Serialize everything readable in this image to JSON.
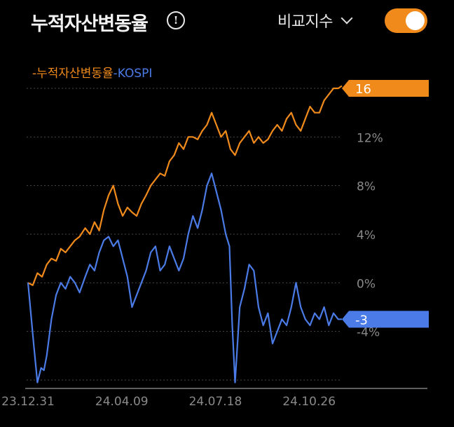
{
  "header": {
    "title": "누적자산변동율",
    "info_icon": "info-circle-icon",
    "info_glyph": "!",
    "compare_label": "비교지수",
    "compare_icon": "chevron-down-icon",
    "toggle_on": true
  },
  "colors": {
    "background": "#000000",
    "portfolio": "#f08a1a",
    "kospi": "#4a7be6",
    "toggle": "#f08a1a",
    "grid": "#4a4a4a",
    "tick_label": "#8a8a8a"
  },
  "chart_data": {
    "type": "line",
    "title": "",
    "xlabel": "",
    "ylabel": "",
    "legend": {
      "placement": "top-left",
      "entries": [
        "누적자산변동율",
        "KOSPI"
      ]
    },
    "ylim": [
      -8.3,
      16.3
    ],
    "y_ticks": [
      {
        "value": 12,
        "label": "12%"
      },
      {
        "value": 8,
        "label": "8%"
      },
      {
        "value": 4,
        "label": "4%"
      },
      {
        "value": 0,
        "label": "0%"
      },
      {
        "value": -4,
        "label": "-4%"
      }
    ],
    "gridlines": [
      16,
      12,
      8,
      4,
      0,
      -4,
      -8
    ],
    "x_ticks": [
      "23.12.31",
      "24.04.09",
      "24.07.18",
      "24.10.26"
    ],
    "x_tick_dates": [
      "2023-12-31",
      "2024-04-09",
      "2024-07-18",
      "2024-10-26"
    ],
    "x_range": [
      "2023-12-31",
      "2024-11-30"
    ],
    "end_labels": [
      {
        "series": "누적자산변동율",
        "label": "16",
        "value": 16
      },
      {
        "series": "KOSPI",
        "label": "-3",
        "value": -3
      }
    ],
    "series": [
      {
        "name": "누적자산변동율",
        "color": "#f08a1a",
        "x": [
          "2023-12-31",
          "2024-01-05",
          "2024-01-10",
          "2024-01-15",
          "2024-01-20",
          "2024-01-25",
          "2024-01-30",
          "2024-02-04",
          "2024-02-09",
          "2024-02-14",
          "2024-02-19",
          "2024-02-24",
          "2024-03-01",
          "2024-03-06",
          "2024-03-11",
          "2024-03-16",
          "2024-03-21",
          "2024-03-26",
          "2024-03-31",
          "2024-04-05",
          "2024-04-10",
          "2024-04-15",
          "2024-04-20",
          "2024-04-25",
          "2024-04-30",
          "2024-05-05",
          "2024-05-10",
          "2024-05-15",
          "2024-05-20",
          "2024-05-25",
          "2024-05-30",
          "2024-06-04",
          "2024-06-09",
          "2024-06-14",
          "2024-06-19",
          "2024-06-24",
          "2024-06-29",
          "2024-07-04",
          "2024-07-09",
          "2024-07-14",
          "2024-07-19",
          "2024-07-24",
          "2024-07-29",
          "2024-08-03",
          "2024-08-08",
          "2024-08-13",
          "2024-08-18",
          "2024-08-23",
          "2024-08-28",
          "2024-09-02",
          "2024-09-07",
          "2024-09-12",
          "2024-09-17",
          "2024-09-22",
          "2024-09-27",
          "2024-10-02",
          "2024-10-07",
          "2024-10-12",
          "2024-10-17",
          "2024-10-22",
          "2024-10-27",
          "2024-11-01",
          "2024-11-06",
          "2024-11-11",
          "2024-11-16",
          "2024-11-21",
          "2024-11-26",
          "2024-11-30"
        ],
        "values": [
          0.0,
          -0.2,
          0.8,
          0.5,
          1.5,
          2.0,
          1.8,
          2.8,
          2.5,
          3.0,
          3.5,
          3.8,
          4.5,
          4.0,
          5.0,
          4.3,
          6.0,
          7.2,
          8.0,
          6.5,
          5.5,
          6.2,
          5.8,
          5.5,
          6.5,
          7.2,
          8.0,
          8.5,
          9.0,
          8.8,
          10.0,
          10.5,
          11.5,
          11.0,
          12.0,
          12.0,
          11.8,
          12.5,
          13.0,
          14.0,
          13.0,
          12.0,
          12.5,
          11.0,
          10.5,
          11.5,
          12.0,
          12.5,
          11.5,
          12.0,
          11.5,
          11.8,
          12.5,
          13.0,
          12.5,
          13.5,
          14.0,
          13.0,
          12.5,
          13.5,
          14.5,
          14.0,
          14.0,
          15.0,
          15.5,
          16.0,
          16.0,
          16.2
        ]
      },
      {
        "name": "KOSPI",
        "color": "#4a7be6",
        "x": [
          "2023-12-31",
          "2024-01-03",
          "2024-01-06",
          "2024-01-10",
          "2024-01-14",
          "2024-01-17",
          "2024-01-20",
          "2024-01-25",
          "2024-01-30",
          "2024-02-04",
          "2024-02-09",
          "2024-02-14",
          "2024-02-19",
          "2024-02-24",
          "2024-03-01",
          "2024-03-06",
          "2024-03-11",
          "2024-03-16",
          "2024-03-21",
          "2024-03-26",
          "2024-03-31",
          "2024-04-05",
          "2024-04-10",
          "2024-04-15",
          "2024-04-20",
          "2024-04-25",
          "2024-04-30",
          "2024-05-05",
          "2024-05-10",
          "2024-05-15",
          "2024-05-20",
          "2024-05-25",
          "2024-05-30",
          "2024-06-04",
          "2024-06-09",
          "2024-06-14",
          "2024-06-19",
          "2024-06-24",
          "2024-06-29",
          "2024-07-04",
          "2024-07-09",
          "2024-07-14",
          "2024-07-19",
          "2024-07-24",
          "2024-07-29",
          "2024-08-02",
          "2024-08-05",
          "2024-08-08",
          "2024-08-13",
          "2024-08-18",
          "2024-08-23",
          "2024-08-28",
          "2024-09-02",
          "2024-09-07",
          "2024-09-12",
          "2024-09-17",
          "2024-09-22",
          "2024-09-27",
          "2024-10-02",
          "2024-10-07",
          "2024-10-12",
          "2024-10-17",
          "2024-10-22",
          "2024-10-27",
          "2024-11-01",
          "2024-11-06",
          "2024-11-11",
          "2024-11-16",
          "2024-11-21",
          "2024-11-26",
          "2024-11-30"
        ],
        "values": [
          0.0,
          -2.5,
          -5.0,
          -8.2,
          -7.0,
          -7.2,
          -6.0,
          -3.0,
          -1.0,
          0.0,
          -0.5,
          0.5,
          0.0,
          -0.8,
          0.5,
          1.5,
          1.0,
          2.5,
          3.5,
          3.8,
          3.0,
          3.5,
          2.0,
          0.5,
          -2.0,
          -1.0,
          0.0,
          1.0,
          2.5,
          3.0,
          1.0,
          1.5,
          3.0,
          2.0,
          1.0,
          2.0,
          4.0,
          5.5,
          4.5,
          6.0,
          8.0,
          9.0,
          7.5,
          6.0,
          4.0,
          3.0,
          -3.5,
          -8.2,
          -2.0,
          -0.5,
          1.5,
          1.0,
          -2.0,
          -3.5,
          -2.5,
          -5.0,
          -4.0,
          -3.0,
          -3.5,
          -2.0,
          0.0,
          -2.0,
          -3.0,
          -3.5,
          -2.5,
          -3.0,
          -2.0,
          -3.5,
          -2.5,
          -3.0,
          -3.0
        ]
      }
    ]
  }
}
